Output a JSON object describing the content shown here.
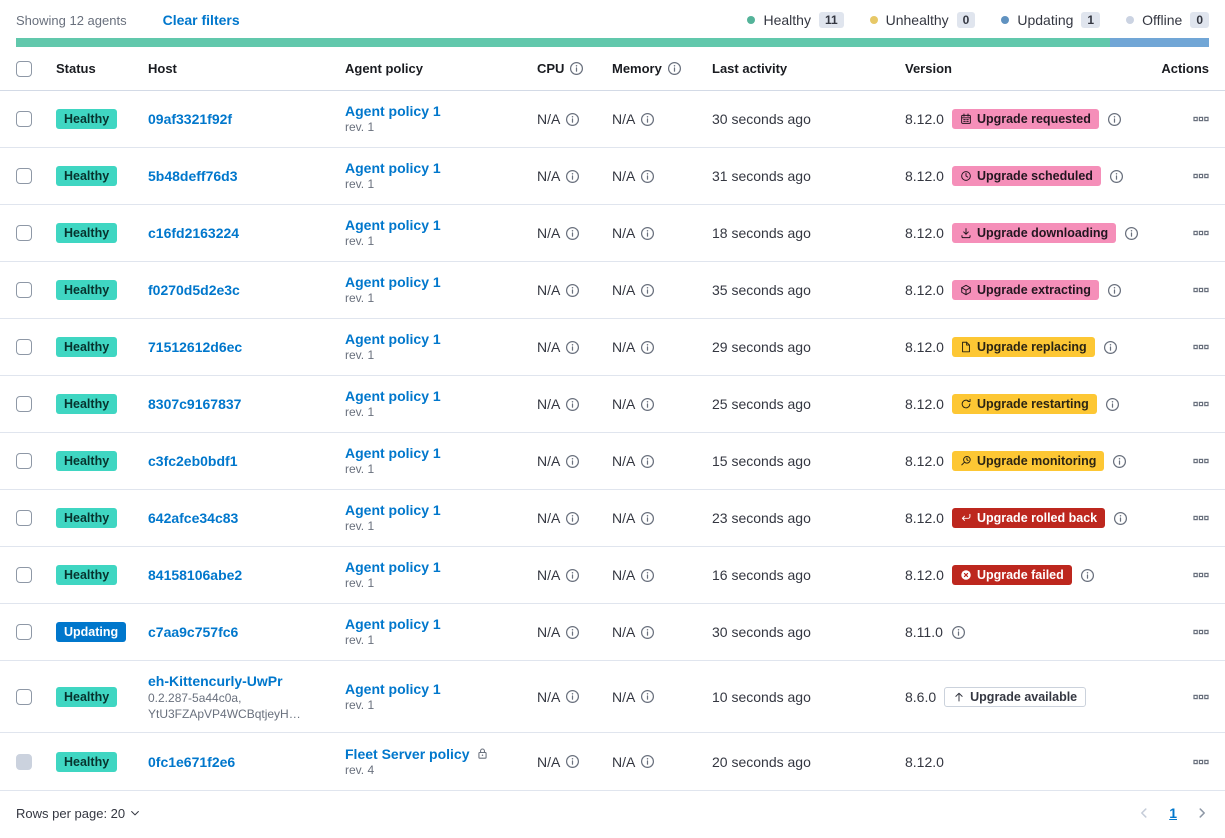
{
  "toolbar": {
    "showing_text": "Showing 12 agents",
    "clear_filters_label": "Clear filters",
    "legend": [
      {
        "label": "Healthy",
        "count": "11",
        "dot_color": "#54B399"
      },
      {
        "label": "Unhealthy",
        "count": "0",
        "dot_color": "#E7C867"
      },
      {
        "label": "Updating",
        "count": "1",
        "dot_color": "#6092C0"
      },
      {
        "label": "Offline",
        "count": "0",
        "dot_color": "#CBD3E2"
      }
    ]
  },
  "status_bar": {
    "segments": [
      {
        "status": "healthy",
        "color": "#61C8AC",
        "fraction": 11
      },
      {
        "status": "updating",
        "color": "#71A6D6",
        "fraction": 1
      }
    ]
  },
  "colors": {
    "link": "#0077CC",
    "healthy_badge": "#3FD6C2",
    "updating_badge": "#0077CC",
    "accent_badge": "#F58FB9",
    "warning_badge": "#FDC734",
    "danger_badge": "#BD271E"
  },
  "table": {
    "headers": {
      "status": "Status",
      "host": "Host",
      "agent_policy": "Agent policy",
      "cpu": "CPU",
      "memory": "Memory",
      "last_activity": "Last activity",
      "version": "Version",
      "actions": "Actions"
    },
    "rows": [
      {
        "status": "Healthy",
        "status_color": "success",
        "host": "09af3321f92f",
        "host_sub": [],
        "policy": "Agent policy 1",
        "policy_rev": "rev. 1",
        "policy_locked": false,
        "cpu": "N/A",
        "memory": "N/A",
        "last_activity": "30 seconds ago",
        "version": "8.12.0",
        "upgrade_badge": {
          "label": "Upgrade requested",
          "variant": "accent",
          "icon": "calendar-icon"
        },
        "version_info": true,
        "checkbox_disabled": false,
        "row_class": ""
      },
      {
        "status": "Healthy",
        "status_color": "success",
        "host": "5b48deff76d3",
        "host_sub": [],
        "policy": "Agent policy 1",
        "policy_rev": "rev. 1",
        "policy_locked": false,
        "cpu": "N/A",
        "memory": "N/A",
        "last_activity": "31 seconds ago",
        "version": "8.12.0",
        "upgrade_badge": {
          "label": "Upgrade scheduled",
          "variant": "accent",
          "icon": "clock-icon"
        },
        "version_info": true,
        "checkbox_disabled": false,
        "row_class": ""
      },
      {
        "status": "Healthy",
        "status_color": "success",
        "host": "c16fd2163224",
        "host_sub": [],
        "policy": "Agent policy 1",
        "policy_rev": "rev. 1",
        "policy_locked": false,
        "cpu": "N/A",
        "memory": "N/A",
        "last_activity": "18 seconds ago",
        "version": "8.12.0",
        "upgrade_badge": {
          "label": "Upgrade downloading",
          "variant": "accent",
          "icon": "download-icon"
        },
        "version_info": true,
        "checkbox_disabled": false,
        "row_class": ""
      },
      {
        "status": "Healthy",
        "status_color": "success",
        "host": "f0270d5d2e3c",
        "host_sub": [],
        "policy": "Agent policy 1",
        "policy_rev": "rev. 1",
        "policy_locked": false,
        "cpu": "N/A",
        "memory": "N/A",
        "last_activity": "35 seconds ago",
        "version": "8.12.0",
        "upgrade_badge": {
          "label": "Upgrade extracting",
          "variant": "accent",
          "icon": "package-icon"
        },
        "version_info": true,
        "checkbox_disabled": false,
        "row_class": ""
      },
      {
        "status": "Healthy",
        "status_color": "success",
        "host": "71512612d6ec",
        "host_sub": [],
        "policy": "Agent policy 1",
        "policy_rev": "rev. 1",
        "policy_locked": false,
        "cpu": "N/A",
        "memory": "N/A",
        "last_activity": "29 seconds ago",
        "version": "8.12.0",
        "upgrade_badge": {
          "label": "Upgrade replacing",
          "variant": "warning",
          "icon": "document-icon"
        },
        "version_info": true,
        "checkbox_disabled": false,
        "row_class": ""
      },
      {
        "status": "Healthy",
        "status_color": "success",
        "host": "8307c9167837",
        "host_sub": [],
        "policy": "Agent policy 1",
        "policy_rev": "rev. 1",
        "policy_locked": false,
        "cpu": "N/A",
        "memory": "N/A",
        "last_activity": "25 seconds ago",
        "version": "8.12.0",
        "upgrade_badge": {
          "label": "Upgrade restarting",
          "variant": "warning",
          "icon": "refresh-icon"
        },
        "version_info": true,
        "checkbox_disabled": false,
        "row_class": ""
      },
      {
        "status": "Healthy",
        "status_color": "success",
        "host": "c3fc2eb0bdf1",
        "host_sub": [],
        "policy": "Agent policy 1",
        "policy_rev": "rev. 1",
        "policy_locked": false,
        "cpu": "N/A",
        "memory": "N/A",
        "last_activity": "15 seconds ago",
        "version": "8.12.0",
        "upgrade_badge": {
          "label": "Upgrade monitoring",
          "variant": "warning",
          "icon": "magnifier-clock-icon"
        },
        "version_info": true,
        "checkbox_disabled": false,
        "row_class": ""
      },
      {
        "status": "Healthy",
        "status_color": "success",
        "host": "642afce34c83",
        "host_sub": [],
        "policy": "Agent policy 1",
        "policy_rev": "rev. 1",
        "policy_locked": false,
        "cpu": "N/A",
        "memory": "N/A",
        "last_activity": "23 seconds ago",
        "version": "8.12.0",
        "upgrade_badge": {
          "label": "Upgrade rolled back",
          "variant": "danger",
          "icon": "return-arrow-icon"
        },
        "version_info": true,
        "checkbox_disabled": false,
        "row_class": ""
      },
      {
        "status": "Healthy",
        "status_color": "success",
        "host": "84158106abe2",
        "host_sub": [],
        "policy": "Agent policy 1",
        "policy_rev": "rev. 1",
        "policy_locked": false,
        "cpu": "N/A",
        "memory": "N/A",
        "last_activity": "16 seconds ago",
        "version": "8.12.0",
        "upgrade_badge": {
          "label": "Upgrade failed",
          "variant": "danger",
          "icon": "cross-circle-icon"
        },
        "version_info": true,
        "checkbox_disabled": false,
        "row_class": ""
      },
      {
        "status": "Updating",
        "status_color": "primary",
        "host": "c7aa9c757fc6",
        "host_sub": [],
        "policy": "Agent policy 1",
        "policy_rev": "rev. 1",
        "policy_locked": false,
        "cpu": "N/A",
        "memory": "N/A",
        "last_activity": "30 seconds ago",
        "version": "8.11.0",
        "upgrade_badge": null,
        "version_info": true,
        "checkbox_disabled": false,
        "row_class": ""
      },
      {
        "status": "Healthy",
        "status_color": "success",
        "host": "eh-Kittencurly-UwPr",
        "host_sub": [
          "0.2.287-5a44c0a,",
          "YtU3FZApVP4WCBqtjeyH…"
        ],
        "policy": "Agent policy 1",
        "policy_rev": "rev. 1",
        "policy_locked": false,
        "cpu": "N/A",
        "memory": "N/A",
        "last_activity": "10 seconds ago",
        "version": "8.6.0",
        "upgrade_badge": {
          "label": "Upgrade available",
          "variant": "hollow",
          "icon": "arrow-up-icon"
        },
        "version_info": false,
        "checkbox_disabled": false,
        "row_class": "tall"
      },
      {
        "status": "Healthy",
        "status_color": "success",
        "host": "0fc1e671f2e6",
        "host_sub": [],
        "policy": "Fleet Server policy",
        "policy_rev": "rev. 4",
        "policy_locked": true,
        "cpu": "N/A",
        "memory": "N/A",
        "last_activity": "20 seconds ago",
        "version": "8.12.0",
        "upgrade_badge": null,
        "version_info": false,
        "checkbox_disabled": true,
        "row_class": "last"
      }
    ]
  },
  "footer": {
    "rows_per_page_label": "Rows per page: 20",
    "page": "1"
  }
}
